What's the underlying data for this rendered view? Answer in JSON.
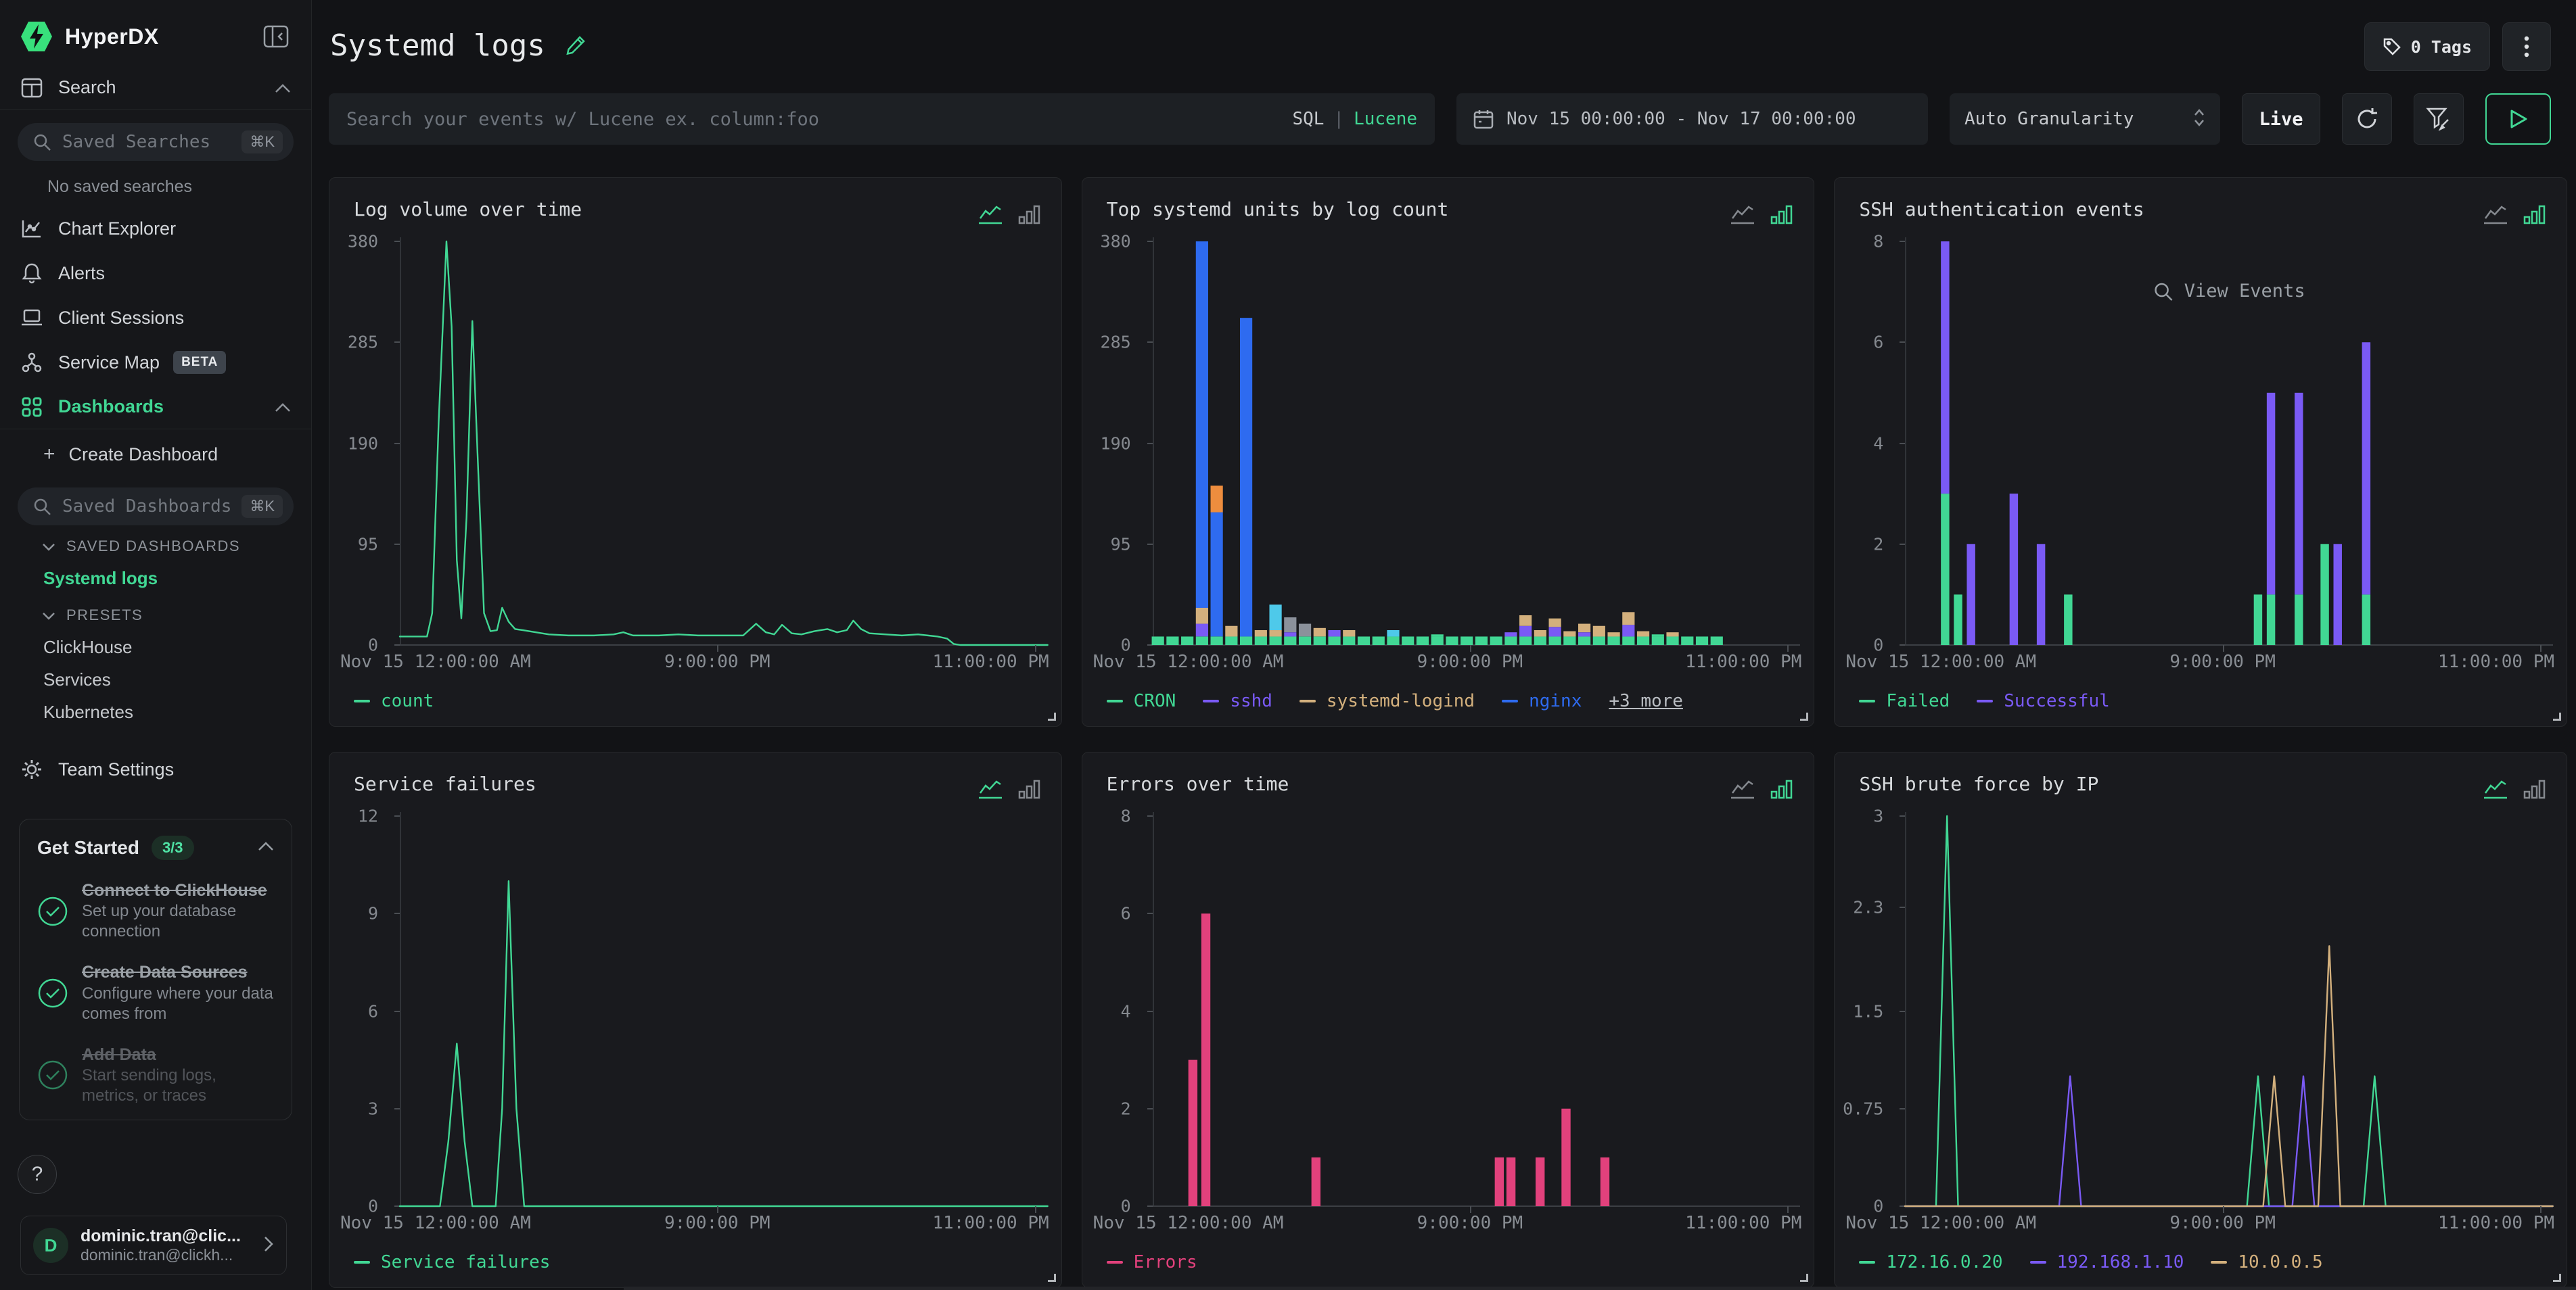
{
  "colors": {
    "green": "#41d794",
    "purple": "#7a5af5",
    "tan": "#d3b07d",
    "blue": "#2e6bf0",
    "orange": "#ee8d3e",
    "cyan": "#4ec9ea",
    "gray": "#8b919b",
    "pink": "#e2417c",
    "accent": "#41d794"
  },
  "sidebar": {
    "brand": "HyperDX",
    "search_label": "Search",
    "saved_searches_placeholder": "Saved Searches",
    "shortcut": "⌘K",
    "no_saved": "No saved searches",
    "chart_explorer": "Chart Explorer",
    "alerts": "Alerts",
    "client_sessions": "Client Sessions",
    "service_map": "Service Map",
    "beta": "BETA",
    "dashboards": "Dashboards",
    "create_dashboard": "Create Dashboard",
    "saved_dashboards_placeholder": "Saved Dashboards",
    "section_saved": "SAVED DASHBOARDS",
    "section_presets": "PRESETS",
    "saved_list": [
      "Systemd logs"
    ],
    "presets": [
      "ClickHouse",
      "Services",
      "Kubernetes"
    ],
    "team_settings": "Team Settings",
    "get_started": {
      "title": "Get Started",
      "badge": "3/3",
      "items": [
        {
          "title": "Connect to ClickHouse",
          "subtitle": "Set up your database connection"
        },
        {
          "title": "Create Data Sources",
          "subtitle": "Configure where your data comes from"
        },
        {
          "title": "Add Data",
          "subtitle": "Start sending logs, metrics, or traces"
        }
      ]
    },
    "help": "?",
    "user": {
      "initial": "D",
      "name": "dominic.tran@clic...",
      "email": "dominic.tran@clickh..."
    }
  },
  "header": {
    "title": "Systemd logs",
    "tags": "0 Tags",
    "search_placeholder": "Search your events w/ Lucene ex. column:foo",
    "lang_sql": "SQL",
    "lang_sep": "|",
    "lang_lucene": "Lucene",
    "date_range": "Nov 15 00:00:00 - Nov 17 00:00:00",
    "granularity": "Auto Granularity",
    "live": "Live"
  },
  "charts": [
    {
      "title": "Log volume over time",
      "type": "line",
      "display": "line",
      "ymax": 380,
      "yticks": [
        [
          0,
          "0"
        ],
        [
          95,
          "95"
        ],
        [
          190,
          "190"
        ],
        [
          285,
          "285"
        ],
        [
          380,
          "380"
        ]
      ],
      "xticks": [
        "Nov 15 12:00:00 AM",
        "9:00:00 PM",
        "11:00:00 PM"
      ],
      "series": [
        {
          "name": "count",
          "color": "green",
          "points": [
            [
              0,
              8
            ],
            [
              0.042,
              8
            ],
            [
              0.05,
              30
            ],
            [
              0.06,
              210
            ],
            [
              0.072,
              380
            ],
            [
              0.08,
              300
            ],
            [
              0.088,
              80
            ],
            [
              0.095,
              25
            ],
            [
              0.103,
              120
            ],
            [
              0.112,
              305
            ],
            [
              0.12,
              180
            ],
            [
              0.13,
              30
            ],
            [
              0.14,
              13
            ],
            [
              0.15,
              14
            ],
            [
              0.158,
              35
            ],
            [
              0.168,
              22
            ],
            [
              0.178,
              15
            ],
            [
              0.19,
              14
            ],
            [
              0.21,
              12
            ],
            [
              0.23,
              10
            ],
            [
              0.26,
              9
            ],
            [
              0.3,
              9
            ],
            [
              0.33,
              10
            ],
            [
              0.345,
              12
            ],
            [
              0.36,
              9
            ],
            [
              0.4,
              9
            ],
            [
              0.43,
              10
            ],
            [
              0.46,
              9
            ],
            [
              0.5,
              9
            ],
            [
              0.53,
              9
            ],
            [
              0.55,
              20
            ],
            [
              0.565,
              12
            ],
            [
              0.578,
              10
            ],
            [
              0.59,
              19
            ],
            [
              0.605,
              11
            ],
            [
              0.62,
              10
            ],
            [
              0.64,
              13
            ],
            [
              0.66,
              15
            ],
            [
              0.675,
              12
            ],
            [
              0.69,
              14
            ],
            [
              0.7,
              23
            ],
            [
              0.712,
              15
            ],
            [
              0.725,
              11
            ],
            [
              0.75,
              10
            ],
            [
              0.775,
              9
            ],
            [
              0.8,
              10
            ],
            [
              0.815,
              9
            ],
            [
              0.83,
              8
            ],
            [
              0.845,
              6
            ],
            [
              0.855,
              1
            ],
            [
              0.865,
              0
            ],
            [
              1,
              0
            ]
          ]
        }
      ],
      "legend": [
        {
          "label": "count",
          "color": "green"
        }
      ]
    },
    {
      "title": "Top systemd units by log count",
      "type": "bar",
      "display": "bar",
      "ymax": 380,
      "barw": 19,
      "yticks": [
        [
          0,
          "0"
        ],
        [
          95,
          "95"
        ],
        [
          190,
          "190"
        ],
        [
          285,
          "285"
        ],
        [
          380,
          "380"
        ]
      ],
      "xticks": [
        "Nov 15 12:00:00 AM",
        "9:00:00 PM",
        "11:00:00 PM"
      ],
      "slots": {
        "count": 39,
        "start": 0.008,
        "pitch": 0.0227,
        "base": [
          "green",
          8
        ]
      },
      "extras": {
        "3": [
          [
            "purple",
            12
          ],
          [
            "tan",
            15
          ],
          [
            "blue",
            345
          ]
        ],
        "4": [
          [
            "blue",
            117
          ],
          [
            "orange",
            25
          ]
        ],
        "5": [
          [
            "tan",
            10
          ]
        ],
        "6": [
          [
            "blue",
            300
          ]
        ],
        "7": [
          [
            "tan",
            6
          ]
        ],
        "8": [
          [
            "tan",
            6
          ],
          [
            "cyan",
            24
          ]
        ],
        "9": [
          [
            "purple",
            4
          ],
          [
            "gray",
            14
          ]
        ],
        "10": [
          [
            "gray",
            12
          ]
        ],
        "11": [
          [
            "tan",
            8
          ]
        ],
        "12": [
          [
            "purple",
            6
          ]
        ],
        "13": [
          [
            "tan",
            6
          ]
        ],
        "16": [
          [
            "cyan",
            6
          ]
        ],
        "19": [
          [
            "green",
            2
          ]
        ],
        "24": [
          [
            "purple",
            4
          ]
        ],
        "25": [
          [
            "purple",
            10
          ],
          [
            "tan",
            10
          ]
        ],
        "26": [
          [
            "tan",
            6
          ]
        ],
        "27": [
          [
            "purple",
            9
          ],
          [
            "tan",
            8
          ]
        ],
        "28": [
          [
            "tan",
            5
          ]
        ],
        "29": [
          [
            "purple",
            4
          ],
          [
            "tan",
            8
          ]
        ],
        "30": [
          [
            "tan",
            10
          ]
        ],
        "31": [
          [
            "tan",
            4
          ]
        ],
        "32": [
          [
            "purple",
            11
          ],
          [
            "tan",
            12
          ]
        ],
        "33": [
          [
            "tan",
            5
          ]
        ],
        "34": [
          [
            "green",
            2
          ]
        ],
        "35": [
          [
            "tan",
            4
          ]
        ]
      },
      "legend": [
        {
          "label": "CRON",
          "color": "green"
        },
        {
          "label": "sshd",
          "color": "purple"
        },
        {
          "label": "systemd-logind",
          "color": "tan"
        },
        {
          "label": "nginx",
          "color": "blue"
        }
      ],
      "legend_more": "+3 more"
    },
    {
      "title": "SSH authentication events",
      "type": "bar",
      "display": "bar",
      "ymax": 8,
      "barw": 13,
      "yticks": [
        [
          0,
          "0"
        ],
        [
          2,
          "2"
        ],
        [
          4,
          "4"
        ],
        [
          6,
          "6"
        ],
        [
          8,
          "8"
        ]
      ],
      "xticks": [
        "Nov 15 12:00:00 AM",
        "9:00:00 PM",
        "11:00:00 PM"
      ],
      "bars": [
        {
          "x": 0.062,
          "s": [
            [
              "green",
              3
            ],
            [
              "purple",
              5
            ]
          ]
        },
        {
          "x": 0.082,
          "s": [
            [
              "green",
              1
            ]
          ]
        },
        {
          "x": 0.102,
          "s": [
            [
              "purple",
              2
            ]
          ]
        },
        {
          "x": 0.168,
          "s": [
            [
              "purple",
              3
            ]
          ]
        },
        {
          "x": 0.21,
          "s": [
            [
              "purple",
              2
            ]
          ]
        },
        {
          "x": 0.252,
          "s": [
            [
              "green",
              1
            ]
          ]
        },
        {
          "x": 0.545,
          "s": [
            [
              "green",
              1
            ]
          ]
        },
        {
          "x": 0.565,
          "s": [
            [
              "green",
              1
            ],
            [
              "purple",
              4
            ]
          ]
        },
        {
          "x": 0.608,
          "s": [
            [
              "green",
              1
            ],
            [
              "purple",
              4
            ]
          ]
        },
        {
          "x": 0.648,
          "s": [
            [
              "green",
              2
            ]
          ]
        },
        {
          "x": 0.668,
          "s": [
            [
              "purple",
              2
            ]
          ]
        },
        {
          "x": 0.712,
          "s": [
            [
              "green",
              1
            ],
            [
              "purple",
              5
            ]
          ]
        }
      ],
      "legend": [
        {
          "label": "Failed",
          "color": "green"
        },
        {
          "label": "Successful",
          "color": "purple"
        }
      ],
      "overlay": "View Events"
    },
    {
      "title": "Service failures",
      "type": "line",
      "display": "line",
      "ymax": 12,
      "yticks": [
        [
          0,
          "0"
        ],
        [
          3,
          "3"
        ],
        [
          6,
          "6"
        ],
        [
          9,
          "9"
        ],
        [
          12,
          "12"
        ]
      ],
      "xticks": [
        "Nov 15 12:00:00 AM",
        "9:00:00 PM",
        "11:00:00 PM"
      ],
      "series": [
        {
          "name": "Service failures",
          "color": "green",
          "points": [
            [
              0,
              0
            ],
            [
              0.062,
              0
            ],
            [
              0.075,
              2
            ],
            [
              0.088,
              5
            ],
            [
              0.1,
              2
            ],
            [
              0.112,
              0
            ],
            [
              0.148,
              0
            ],
            [
              0.158,
              3
            ],
            [
              0.168,
              10
            ],
            [
              0.18,
              3
            ],
            [
              0.192,
              0
            ],
            [
              1,
              0
            ]
          ]
        }
      ],
      "legend": [
        {
          "label": "Service failures",
          "color": "green"
        }
      ]
    },
    {
      "title": "Errors over time",
      "type": "bar",
      "display": "bar",
      "ymax": 8,
      "barw": 14,
      "yticks": [
        [
          0,
          "0"
        ],
        [
          2,
          "2"
        ],
        [
          4,
          "4"
        ],
        [
          6,
          "6"
        ],
        [
          8,
          "8"
        ]
      ],
      "xticks": [
        "Nov 15 12:00:00 AM",
        "9:00:00 PM",
        "11:00:00 PM"
      ],
      "bars": [
        {
          "x": 0.062,
          "s": [
            [
              "pink",
              3
            ]
          ]
        },
        {
          "x": 0.082,
          "s": [
            [
              "pink",
              6
            ]
          ]
        },
        {
          "x": 0.252,
          "s": [
            [
              "pink",
              1
            ]
          ]
        },
        {
          "x": 0.535,
          "s": [
            [
              "pink",
              1
            ]
          ]
        },
        {
          "x": 0.553,
          "s": [
            [
              "pink",
              1
            ]
          ]
        },
        {
          "x": 0.598,
          "s": [
            [
              "pink",
              1
            ]
          ]
        },
        {
          "x": 0.638,
          "s": [
            [
              "pink",
              2
            ]
          ]
        },
        {
          "x": 0.698,
          "s": [
            [
              "pink",
              1
            ]
          ]
        }
      ],
      "legend": [
        {
          "label": "Errors",
          "color": "pink"
        }
      ]
    },
    {
      "title": "SSH brute force by IP",
      "type": "line",
      "display": "line",
      "ymax": 3,
      "yticks": [
        [
          0,
          "0"
        ],
        [
          0.75,
          "0.75"
        ],
        [
          1.5,
          "1.5"
        ],
        [
          2.3,
          "2.3"
        ],
        [
          3,
          "3"
        ]
      ],
      "xticks": [
        "Nov 15 12:00:00 AM",
        "9:00:00 PM",
        "11:00:00 PM"
      ],
      "series": [
        {
          "name": "172.16.0.20",
          "color": "green",
          "points": [
            [
              0,
              0
            ],
            [
              0.048,
              0
            ],
            [
              0.065,
              3
            ],
            [
              0.082,
              0
            ],
            [
              0.528,
              0
            ],
            [
              0.545,
              1
            ],
            [
              0.562,
              0
            ],
            [
              0.708,
              0
            ],
            [
              0.725,
              1
            ],
            [
              0.742,
              0
            ],
            [
              1,
              0
            ]
          ]
        },
        {
          "name": "192.168.1.10",
          "color": "purple",
          "points": [
            [
              0,
              0
            ],
            [
              0.238,
              0
            ],
            [
              0.255,
              1
            ],
            [
              0.272,
              0
            ],
            [
              0.598,
              0
            ],
            [
              0.615,
              1
            ],
            [
              0.632,
              0
            ],
            [
              1,
              0
            ]
          ]
        },
        {
          "name": "10.0.0.5",
          "color": "tan",
          "points": [
            [
              0,
              0
            ],
            [
              0.553,
              0
            ],
            [
              0.57,
              1
            ],
            [
              0.587,
              0
            ],
            [
              0.638,
              0
            ],
            [
              0.655,
              2
            ],
            [
              0.672,
              0
            ],
            [
              1,
              0
            ]
          ]
        }
      ],
      "legend": [
        {
          "label": "172.16.0.20",
          "color": "green"
        },
        {
          "label": "192.168.1.10",
          "color": "purple"
        },
        {
          "label": "10.0.0.5",
          "color": "tan"
        }
      ]
    }
  ]
}
